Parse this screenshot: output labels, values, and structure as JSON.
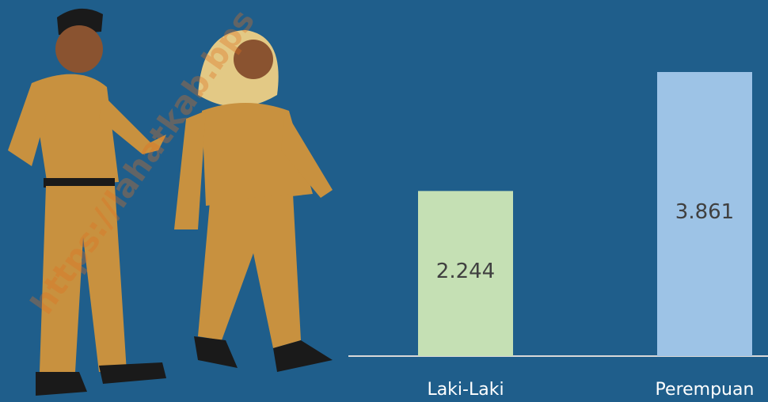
{
  "chart_data": {
    "type": "bar",
    "categories": [
      "Laki-Laki",
      "Perempuan"
    ],
    "values": [
      2244,
      3861
    ],
    "value_labels": [
      "2.244",
      "3.861"
    ],
    "colors": [
      "#c5e0b4",
      "#9dc3e6"
    ],
    "watermark": "https://lahatkab.bps"
  }
}
